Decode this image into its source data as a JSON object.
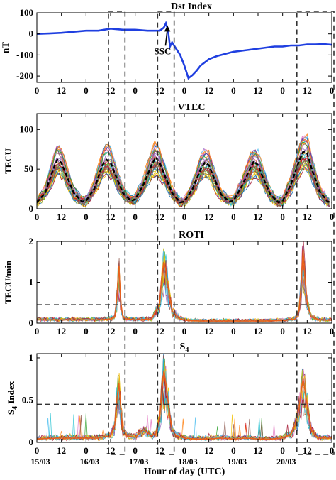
{
  "chart_data": [
    {
      "type": "line",
      "title": "Dst Index",
      "ylabel": "nT",
      "ylim": [
        -230,
        100
      ],
      "yticks": [
        100,
        0,
        -100,
        -200
      ],
      "xlim": [
        0,
        144
      ],
      "xtick_labels": [
        "0",
        "12",
        "0",
        "12",
        "0",
        "12",
        "0",
        "12",
        "0",
        "12",
        "0",
        "12",
        "0"
      ],
      "annotation": "SSC",
      "series": [
        {
          "color": "#1f3fe0",
          "x": [
            0,
            6,
            12,
            18,
            24,
            30,
            36,
            42,
            48,
            54,
            60,
            62,
            63,
            64,
            65,
            66,
            68,
            70,
            72,
            74,
            76,
            78,
            80,
            82,
            84,
            88,
            92,
            96,
            100,
            104,
            108,
            112,
            116,
            120,
            124,
            128,
            132,
            136,
            140,
            144
          ],
          "y": [
            0,
            2,
            5,
            10,
            15,
            15,
            25,
            20,
            20,
            15,
            15,
            30,
            50,
            20,
            -60,
            -40,
            -70,
            -100,
            -150,
            -210,
            -195,
            -175,
            -150,
            -135,
            -120,
            -105,
            -95,
            -85,
            -80,
            -75,
            -70,
            -65,
            -60,
            -60,
            -55,
            -55,
            -50,
            -50,
            -48,
            -52
          ]
        }
      ]
    },
    {
      "type": "line",
      "title": "VTEC",
      "ylabel": "TECU",
      "ylim": [
        0,
        120
      ],
      "yticks": [
        0,
        50,
        100
      ],
      "xlim": [
        0,
        144
      ],
      "xtick_labels": [
        "0",
        "12",
        "0",
        "12",
        "0",
        "12",
        "0",
        "12",
        "0",
        "12",
        "0",
        "12",
        "0"
      ],
      "description_of_series": "many overlapping colored station curves with a black dashed mean",
      "series": [
        {
          "color": "#000000",
          "x": [
            0,
            4,
            8,
            10,
            12,
            14,
            18,
            22,
            24,
            28,
            32,
            34,
            36,
            38,
            42,
            46,
            48,
            52,
            56,
            58,
            60,
            62,
            66,
            70,
            72,
            76,
            80,
            82,
            84,
            86,
            90,
            94,
            96,
            100,
            104,
            106,
            108,
            110,
            114,
            118,
            120,
            124,
            128,
            130,
            132,
            134,
            138,
            142,
            144
          ],
          "y": [
            8,
            20,
            50,
            62,
            58,
            45,
            20,
            9,
            10,
            25,
            55,
            62,
            58,
            45,
            20,
            10,
            12,
            30,
            55,
            65,
            58,
            45,
            20,
            8,
            9,
            25,
            50,
            58,
            55,
            42,
            18,
            9,
            10,
            28,
            50,
            60,
            55,
            42,
            18,
            8,
            10,
            30,
            60,
            72,
            70,
            52,
            22,
            9,
            8
          ]
        }
      ]
    },
    {
      "type": "line",
      "title": "ROTI",
      "ylabel": "TECU/min",
      "ylim": [
        0,
        2
      ],
      "yticks": [
        0,
        1,
        2
      ],
      "threshold": 0.45,
      "xlim": [
        0,
        144
      ],
      "xtick_labels": [
        "0",
        "12",
        "0",
        "12",
        "0",
        "12",
        "0",
        "12",
        "0",
        "12",
        "0",
        "12",
        "0"
      ],
      "series": [
        {
          "color": "#e8601c",
          "x": [
            0,
            10,
            20,
            30,
            36,
            38,
            39,
            40,
            41,
            42,
            44,
            48,
            56,
            60,
            61,
            62,
            63,
            64,
            65,
            66,
            70,
            74,
            80,
            90,
            100,
            110,
            120,
            126,
            128,
            129,
            130,
            131,
            132,
            133,
            134,
            138,
            144
          ],
          "y": [
            0.08,
            0.08,
            0.08,
            0.08,
            0.1,
            0.15,
            0.6,
            1.4,
            0.5,
            0.15,
            0.1,
            0.08,
            0.1,
            0.5,
            1.1,
            1.5,
            1.3,
            0.9,
            0.6,
            0.3,
            0.1,
            0.06,
            0.05,
            0.05,
            0.05,
            0.05,
            0.06,
            0.1,
            0.3,
            0.9,
            1.8,
            1.0,
            0.5,
            0.3,
            0.15,
            0.08,
            0.07
          ]
        }
      ]
    },
    {
      "type": "line",
      "title": "S4",
      "ylabel": "S4 Index",
      "ylim": [
        0,
        1.05
      ],
      "yticks": [
        0,
        0.5,
        1
      ],
      "threshold": 0.45,
      "xlim": [
        0,
        144
      ],
      "xtick_labels": [
        "0",
        "12",
        "0",
        "12",
        "0",
        "12",
        "0",
        "12",
        "0",
        "12",
        "0",
        "12",
        "0"
      ],
      "xlabel": "Hour of day (UTC)",
      "dates": [
        "15/03",
        "16/03",
        "17/03",
        "18/03",
        "19/03",
        "20/03"
      ],
      "series": [
        {
          "color": "#e8601c",
          "x": [
            0,
            10,
            20,
            30,
            36,
            38,
            39,
            40,
            41,
            42,
            44,
            48,
            52,
            56,
            58,
            60,
            61,
            62,
            63,
            64,
            65,
            66,
            68,
            72,
            78,
            84,
            90,
            96,
            102,
            108,
            114,
            120,
            124,
            126,
            128,
            129,
            130,
            131,
            132,
            133,
            134,
            136,
            138,
            144
          ],
          "y": [
            0.04,
            0.05,
            0.05,
            0.05,
            0.08,
            0.2,
            0.5,
            0.7,
            0.4,
            0.15,
            0.08,
            0.06,
            0.15,
            0.08,
            0.1,
            0.3,
            0.6,
            0.85,
            0.7,
            0.5,
            0.3,
            0.15,
            0.08,
            0.05,
            0.04,
            0.04,
            0.05,
            0.04,
            0.05,
            0.04,
            0.04,
            0.05,
            0.1,
            0.2,
            0.4,
            0.6,
            0.75,
            0.6,
            0.45,
            0.3,
            0.15,
            0.08,
            0.05,
            0.05
          ]
        }
      ]
    }
  ]
}
